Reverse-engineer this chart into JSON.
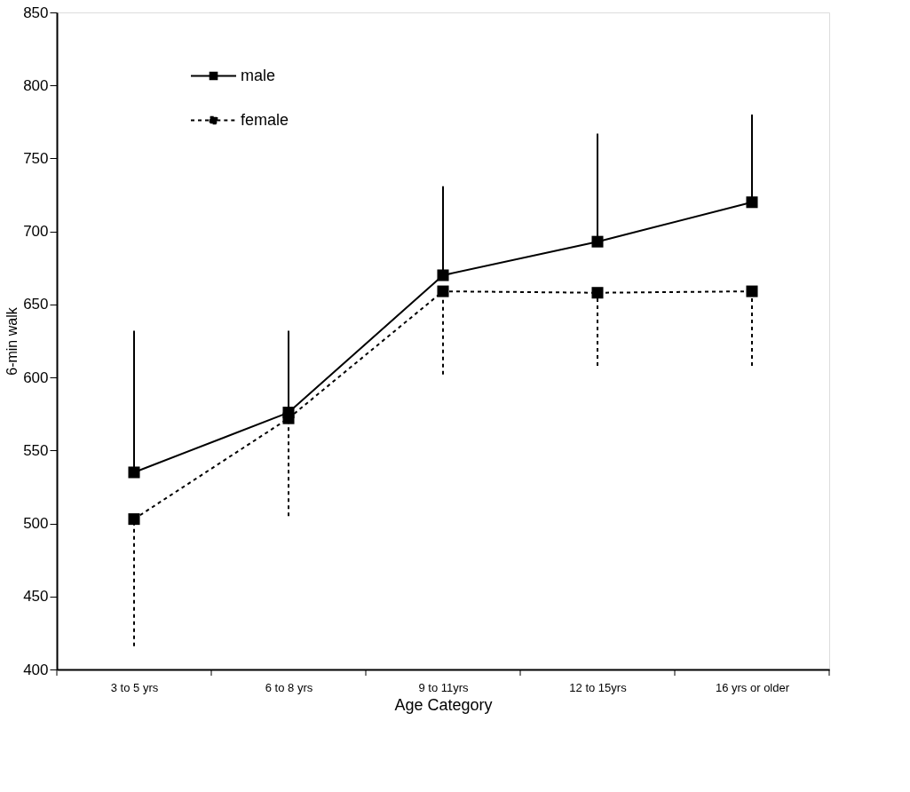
{
  "chart_data": {
    "type": "line",
    "xlabel": "Age Category",
    "ylabel": "6-min walk",
    "categories": [
      "3 to 5 yrs",
      "6 to 8 yrs",
      "9 to 11yrs",
      "12 to 15yrs",
      "16 yrs or older"
    ],
    "series": [
      {
        "name": "male",
        "color": "#000000",
        "line_style": "solid",
        "values": [
          535,
          576,
          670,
          693,
          720
        ],
        "errors": [
          [
            535,
            632
          ],
          [
            576,
            632
          ],
          [
            670,
            731
          ],
          [
            693,
            767
          ],
          [
            720,
            780
          ]
        ]
      },
      {
        "name": "female",
        "color": "#000000",
        "line_style": "dashed",
        "values": [
          503,
          572,
          659,
          658,
          659
        ],
        "errors": [
          [
            416,
            503
          ],
          [
            505,
            572
          ],
          [
            602,
            659
          ],
          [
            608,
            658
          ],
          [
            608,
            659
          ]
        ]
      }
    ],
    "ylim": [
      400,
      850
    ],
    "yticks": [
      400,
      450,
      500,
      550,
      600,
      650,
      700,
      750,
      800,
      850
    ],
    "marker": "square",
    "grid": false,
    "legend": "top left"
  }
}
